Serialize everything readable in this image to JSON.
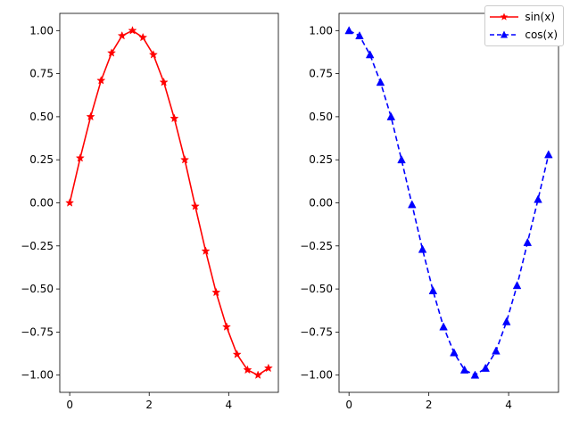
{
  "chart_data": [
    {
      "type": "line",
      "title": "",
      "xlabel": "",
      "ylabel": "",
      "xlim": [
        -0.25,
        5.25
      ],
      "ylim": [
        -1.1,
        1.1
      ],
      "xticks": [
        "0",
        "2",
        "4"
      ],
      "yticks": [
        "1.00",
        "0.75",
        "0.50",
        "0.25",
        "0.00",
        "−0.25",
        "−0.50",
        "−0.75",
        "−1.00"
      ],
      "grid": false,
      "x": [
        0.0,
        0.263,
        0.526,
        0.789,
        1.053,
        1.316,
        1.579,
        1.842,
        2.105,
        2.368,
        2.632,
        2.895,
        3.158,
        3.421,
        3.684,
        3.947,
        4.211,
        4.474,
        4.737,
        5.0
      ],
      "series": [
        {
          "name": "sin(x)",
          "color": "#ff0000",
          "linestyle": "solid",
          "marker": "star",
          "values": [
            0.0,
            0.26,
            0.5,
            0.71,
            0.87,
            0.97,
            1.0,
            0.96,
            0.86,
            0.7,
            0.49,
            0.25,
            -0.02,
            -0.28,
            -0.52,
            -0.72,
            -0.88,
            -0.97,
            -1.0,
            -0.96
          ]
        }
      ]
    },
    {
      "type": "line",
      "title": "",
      "xlabel": "",
      "ylabel": "",
      "xlim": [
        -0.25,
        5.25
      ],
      "ylim": [
        -1.1,
        1.1
      ],
      "xticks": [
        "0",
        "2",
        "4"
      ],
      "yticks": [
        "1.00",
        "0.75",
        "0.50",
        "0.25",
        "0.00",
        "−0.25",
        "−0.50",
        "−0.75",
        "−1.00"
      ],
      "grid": false,
      "x": [
        0.0,
        0.263,
        0.526,
        0.789,
        1.053,
        1.316,
        1.579,
        1.842,
        2.105,
        2.368,
        2.632,
        2.895,
        3.158,
        3.421,
        3.684,
        3.947,
        4.211,
        4.474,
        4.737,
        5.0
      ],
      "series": [
        {
          "name": "cos(x)",
          "color": "#0000ff",
          "linestyle": "dashed",
          "marker": "triangle-up",
          "values": [
            1.0,
            0.97,
            0.86,
            0.7,
            0.5,
            0.25,
            -0.01,
            -0.27,
            -0.51,
            -0.72,
            -0.87,
            -0.97,
            -1.0,
            -0.96,
            -0.86,
            -0.69,
            -0.48,
            -0.23,
            0.02,
            0.28
          ]
        }
      ]
    }
  ],
  "legend": {
    "placement": "upper-right",
    "entries": [
      {
        "label": "sin(x)",
        "color": "#ff0000",
        "linestyle": "solid",
        "marker": "star"
      },
      {
        "label": "cos(x)",
        "color": "#0000ff",
        "linestyle": "dashed",
        "marker": "triangle-up"
      }
    ]
  }
}
